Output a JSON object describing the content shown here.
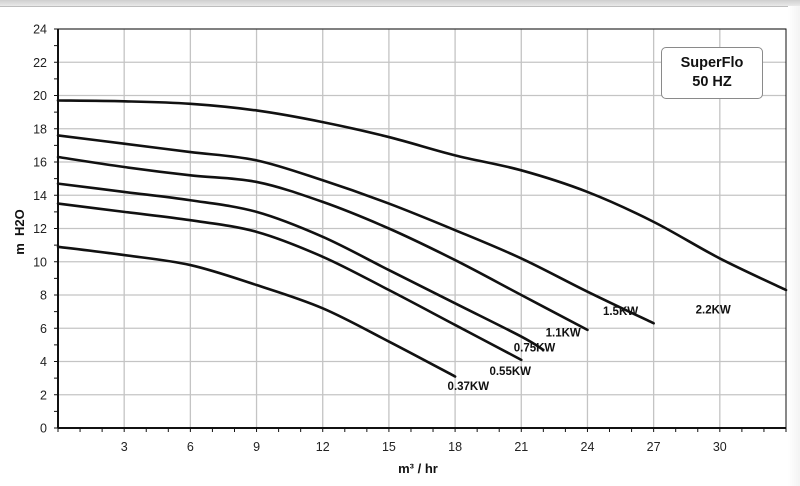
{
  "chart_data": {
    "type": "line",
    "title": "SuperFlo 50 HZ",
    "title_lines": [
      "SuperFlo",
      "50 HZ"
    ],
    "xlabel": "m³ / hr",
    "ylabel": "m  H2O",
    "xlim": [
      0,
      33
    ],
    "ylim": [
      0,
      24
    ],
    "x_ticks": [
      3,
      6,
      9,
      12,
      15,
      18,
      21,
      24,
      27,
      30
    ],
    "y_ticks": [
      0,
      2,
      4,
      6,
      8,
      10,
      12,
      14,
      16,
      18,
      20,
      22,
      24
    ],
    "grid": true,
    "legend_position": "top-right box (title only); series labeled at curve ends",
    "series": [
      {
        "name": "2.2KW",
        "x": [
          0,
          3,
          6,
          9,
          12,
          15,
          18,
          21,
          24,
          27,
          30,
          33
        ],
        "values": [
          19.7,
          19.65,
          19.5,
          19.1,
          18.4,
          17.5,
          16.4,
          15.5,
          14.2,
          12.4,
          10.2,
          8.3
        ],
        "label_pos": [
          29.7,
          6.9
        ]
      },
      {
        "name": "1.5KW",
        "x": [
          0,
          3,
          6,
          9,
          12,
          15,
          18,
          21,
          24,
          27
        ],
        "values": [
          17.6,
          17.1,
          16.6,
          16.1,
          14.9,
          13.5,
          11.9,
          10.2,
          8.2,
          6.3
        ],
        "label_pos": [
          25.5,
          6.8
        ]
      },
      {
        "name": "1.1KW",
        "x": [
          0,
          3,
          6,
          9,
          12,
          15,
          18,
          21,
          24
        ],
        "values": [
          16.3,
          15.7,
          15.2,
          14.8,
          13.6,
          12.0,
          10.1,
          8.0,
          5.9
        ],
        "label_pos": [
          22.9,
          5.5
        ]
      },
      {
        "name": "0.75KW",
        "x": [
          0,
          3,
          6,
          9,
          12,
          15,
          18,
          21,
          22
        ],
        "values": [
          14.7,
          14.2,
          13.7,
          13.0,
          11.5,
          9.5,
          7.5,
          5.5,
          4.7
        ],
        "label_pos": [
          21.6,
          4.6
        ]
      },
      {
        "name": "0.55KW",
        "x": [
          0,
          3,
          6,
          9,
          12,
          15,
          18,
          21
        ],
        "values": [
          13.5,
          13.0,
          12.5,
          11.8,
          10.3,
          8.3,
          6.2,
          4.1
        ],
        "label_pos": [
          20.5,
          3.2
        ]
      },
      {
        "name": "0.37KW",
        "x": [
          0,
          3,
          6,
          9,
          12,
          15,
          18
        ],
        "values": [
          10.9,
          10.4,
          9.8,
          8.6,
          7.2,
          5.2,
          3.1
        ],
        "label_pos": [
          18.6,
          2.3
        ]
      }
    ],
    "colors": {
      "line": "#111111",
      "grid": "#c4c4c4",
      "axis": "#111111"
    }
  }
}
